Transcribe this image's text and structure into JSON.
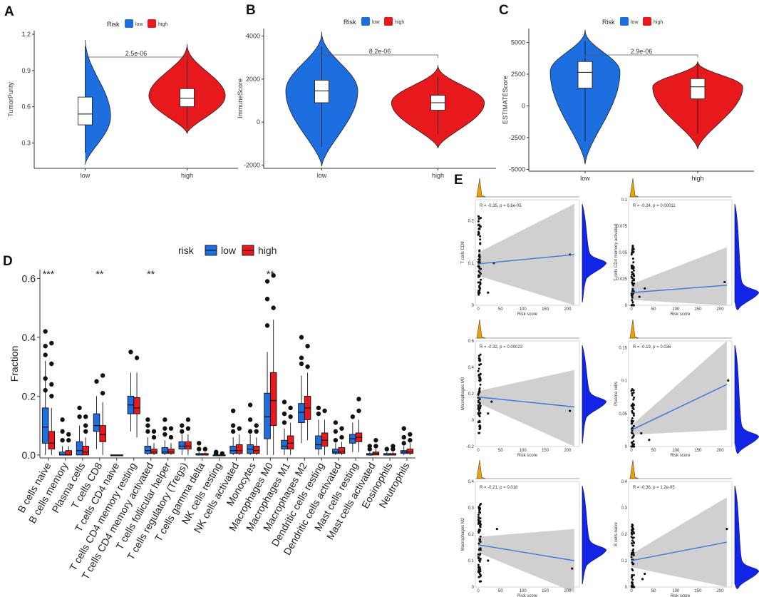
{
  "colors": {
    "low": "#1d6fe0",
    "high": "#e8191c",
    "dens": "#1224e6",
    "fit": "#3a78d6",
    "band": "#c8c8c8",
    "orange": "#f0a000"
  },
  "panel_labels": [
    "A",
    "B",
    "C",
    "D",
    "E"
  ],
  "chart_data": [
    {
      "id": "A",
      "type": "violin",
      "legend_title": "Risk",
      "legend": [
        "low",
        "high"
      ],
      "categories": [
        "low",
        "high"
      ],
      "ylabel": "TumorPurity",
      "yticks": [
        0.3,
        0.6,
        0.9,
        1.2
      ],
      "ylim": [
        0.09,
        1.23
      ],
      "pvalue": "2.5e-06",
      "groups": [
        {
          "name": "low",
          "color": "low",
          "min": 0.12,
          "max": 1.18,
          "q1": 0.45,
          "median": 0.54,
          "q3": 0.68,
          "wlo": 0.22,
          "whi": 1.1,
          "mode": 0.52,
          "width": 0.5
        },
        {
          "name": "high",
          "color": "high",
          "min": 0.38,
          "max": 1.12,
          "q1": 0.6,
          "median": 0.67,
          "q3": 0.75,
          "wlo": 0.42,
          "whi": 1.03,
          "mode": 0.69,
          "width": 0.75
        }
      ]
    },
    {
      "id": "B",
      "type": "violin",
      "legend_title": "Risk",
      "legend": [
        "low",
        "high"
      ],
      "categories": [
        "low",
        "high"
      ],
      "ylabel": "ImmuneScore",
      "yticks": [
        -2000,
        0,
        2000,
        4000
      ],
      "ylim": [
        -2150,
        4350
      ],
      "pvalue": "8.2e-06",
      "groups": [
        {
          "name": "low",
          "color": "low",
          "min": -2050,
          "max": 4200,
          "q1": 900,
          "median": 1450,
          "q3": 1950,
          "wlo": -1150,
          "whi": 3500,
          "mode": 1450,
          "width": 0.62
        },
        {
          "name": "high",
          "color": "high",
          "min": -1200,
          "max": 2650,
          "q1": 550,
          "median": 900,
          "q3": 1250,
          "wlo": -550,
          "whi": 2100,
          "mode": 900,
          "width": 0.8
        }
      ]
    },
    {
      "id": "C",
      "type": "violin",
      "legend_title": "Risk",
      "legend": [
        "low",
        "high"
      ],
      "categories": [
        "low",
        "high"
      ],
      "ylabel": "ESTIMATEScore",
      "yticks": [
        -5000,
        -2500,
        0,
        2500,
        5000
      ],
      "ylim": [
        -5150,
        6100
      ],
      "pvalue": "2.9e-06",
      "groups": [
        {
          "name": "low",
          "color": "low",
          "min": -4600,
          "max": 6000,
          "q1": 1400,
          "median": 2650,
          "q3": 3500,
          "wlo": -2800,
          "whi": 5100,
          "mode": 2700,
          "width": 0.62
        },
        {
          "name": "high",
          "color": "high",
          "min": -3400,
          "max": 3500,
          "q1": 550,
          "median": 1500,
          "q3": 2150,
          "wlo": -2200,
          "whi": 3300,
          "mode": 1500,
          "width": 0.8
        }
      ]
    },
    {
      "id": "D",
      "type": "boxplot",
      "legend_title": "risk",
      "legend": [
        "low",
        "high"
      ],
      "ylabel": "Fraction",
      "yticks": [
        0.0,
        0.2,
        0.4,
        0.6
      ],
      "ylim": [
        -0.01,
        0.63
      ],
      "categories": [
        "B cells naive",
        "B cells memory",
        "Plasma cells",
        "T cells CD8",
        "T cells CD4 naive",
        "T cells CD4 memory resting",
        "T cells CD4 memory activated",
        "T cells follicular helper",
        "T cells regulatory (Tregs)",
        "T cells gamma delta",
        "NK cells resting",
        "NK cells activated",
        "Monocytes",
        "Macrophages M0",
        "Macrophages M1",
        "Macrophages M2",
        "Dendritic cells resting",
        "Dendritic cells activated",
        "Mast cells resting",
        "Mast cells activated",
        "Eosinophils",
        "Neutrophils"
      ],
      "significance": [
        "***",
        "",
        "",
        "**",
        "",
        "",
        "**",
        "",
        "",
        "",
        "",
        "",
        "",
        "**",
        "",
        "",
        "",
        "",
        "",
        "",
        "",
        ""
      ],
      "low": [
        [
          0.04,
          0.095,
          0.16,
          0.0,
          0.32
        ],
        [
          0.0,
          0.0,
          0.01,
          0.0,
          0.03
        ],
        [
          0.0,
          0.015,
          0.045,
          0.0,
          0.1
        ],
        [
          0.08,
          0.1,
          0.14,
          0.02,
          0.2
        ],
        [
          0.0,
          0.0,
          0.0,
          0.0,
          0.0
        ],
        [
          0.14,
          0.17,
          0.2,
          0.08,
          0.28
        ],
        [
          0.005,
          0.015,
          0.03,
          0.0,
          0.06
        ],
        [
          0.005,
          0.01,
          0.025,
          0.0,
          0.05
        ],
        [
          0.02,
          0.03,
          0.045,
          0.0,
          0.07
        ],
        [
          0.0,
          0.0,
          0.005,
          0.0,
          0.01
        ],
        [
          0.0,
          0.0,
          0.0,
          0.0,
          0.0
        ],
        [
          0.005,
          0.015,
          0.03,
          0.0,
          0.06
        ],
        [
          0.005,
          0.02,
          0.035,
          0.0,
          0.07
        ],
        [
          0.055,
          0.13,
          0.21,
          0.0,
          0.35
        ],
        [
          0.02,
          0.03,
          0.05,
          0.0,
          0.09
        ],
        [
          0.11,
          0.145,
          0.175,
          0.04,
          0.27
        ],
        [
          0.02,
          0.035,
          0.065,
          0.0,
          0.12
        ],
        [
          0.005,
          0.01,
          0.02,
          0.0,
          0.04
        ],
        [
          0.04,
          0.055,
          0.07,
          0.01,
          0.11
        ],
        [
          0.0,
          0.0,
          0.005,
          0.0,
          0.01
        ],
        [
          0.0,
          0.0,
          0.005,
          0.0,
          0.01
        ],
        [
          0.005,
          0.01,
          0.015,
          0.0,
          0.03
        ]
      ],
      "high": [
        [
          0.02,
          0.04,
          0.08,
          0.0,
          0.16
        ],
        [
          0.0,
          0.0,
          0.015,
          0.0,
          0.03
        ],
        [
          0.0,
          0.01,
          0.03,
          0.0,
          0.06
        ],
        [
          0.045,
          0.07,
          0.1,
          0.0,
          0.18
        ],
        [
          0.0,
          0.0,
          0.0,
          0.0,
          0.0
        ],
        [
          0.14,
          0.16,
          0.195,
          0.06,
          0.28
        ],
        [
          0.005,
          0.01,
          0.02,
          0.0,
          0.04
        ],
        [
          0.005,
          0.01,
          0.02,
          0.0,
          0.04
        ],
        [
          0.02,
          0.03,
          0.045,
          0.0,
          0.07
        ],
        [
          0.0,
          0.0,
          0.005,
          0.0,
          0.01
        ],
        [
          0.0,
          0.0,
          0.0,
          0.0,
          0.0
        ],
        [
          0.005,
          0.015,
          0.035,
          0.0,
          0.07
        ],
        [
          0.005,
          0.015,
          0.03,
          0.0,
          0.06
        ],
        [
          0.1,
          0.185,
          0.28,
          0.0,
          0.46
        ],
        [
          0.02,
          0.04,
          0.065,
          0.0,
          0.11
        ],
        [
          0.12,
          0.16,
          0.2,
          0.05,
          0.28
        ],
        [
          0.03,
          0.05,
          0.075,
          0.0,
          0.12
        ],
        [
          0.005,
          0.01,
          0.025,
          0.0,
          0.045
        ],
        [
          0.045,
          0.06,
          0.075,
          0.01,
          0.12
        ],
        [
          0.0,
          0.005,
          0.01,
          0.0,
          0.02
        ],
        [
          0.0,
          0.0,
          0.005,
          0.0,
          0.01
        ],
        [
          0.005,
          0.01,
          0.02,
          0.0,
          0.04
        ]
      ],
      "low_outliers": [
        [
          0.22,
          0.26,
          0.34,
          0.37,
          0.42
        ],
        [
          0.05,
          0.08,
          0.12
        ],
        [
          0.13,
          0.16
        ],
        [
          0.25
        ],
        [],
        [
          0.35
        ],
        [
          0.08,
          0.1,
          0.12
        ],
        [
          0.07,
          0.09,
          0.12
        ],
        [
          0.08,
          0.1
        ],
        [
          0.02,
          0.04
        ],
        [
          0.005,
          0.01
        ],
        [
          0.08,
          0.1,
          0.15
        ],
        [
          0.08,
          0.12,
          0.17
        ],
        [
          0.44,
          0.53,
          0.59
        ],
        [
          0.11,
          0.14,
          0.18
        ],
        [
          0.31,
          0.33,
          0.4
        ],
        [
          0.14,
          0.16
        ],
        [
          0.05,
          0.08,
          0.11
        ],
        [
          0.13
        ],
        [
          0.02,
          0.03
        ],
        [
          0.02
        ],
        [
          0.04,
          0.06,
          0.09
        ]
      ],
      "high_outliers": [
        [
          0.2,
          0.24,
          0.31,
          0.38
        ],
        [
          0.05,
          0.07
        ],
        [
          0.08,
          0.1,
          0.13
        ],
        [
          0.21,
          0.27
        ],
        [],
        [
          0.33
        ],
        [
          0.06,
          0.08
        ],
        [
          0.06,
          0.09
        ],
        [
          0.09,
          0.12
        ],
        [
          0.02
        ],
        [
          0.005
        ],
        [
          0.09
        ],
        [
          0.08,
          0.1
        ],
        [
          0.5,
          0.61
        ],
        [
          0.13,
          0.16
        ],
        [
          0.3,
          0.37
        ],
        [
          0.15
        ],
        [
          0.06,
          0.09
        ],
        [
          0.15,
          0.19
        ],
        [
          0.03,
          0.05
        ],
        [
          0.02,
          0.03
        ],
        [
          0.05,
          0.07
        ]
      ]
    },
    {
      "id": "E",
      "type": "scatter-grid",
      "xlabel": "Risk score",
      "xticks": [
        0,
        50,
        100,
        150,
        200
      ],
      "panels": [
        {
          "ylabel": "T cells CD8",
          "stat": "R = -0.35, p = 6.6e-05",
          "ymin": 0,
          "ymax": 0.25,
          "yticks": [
            0.0,
            0.1,
            0.2
          ],
          "fit": [
            0.098,
            0.12
          ],
          "band": [
            [
              0.07,
              0.125
            ],
            [
              0.0,
              0.24
            ]
          ],
          "out": [
            [
              205,
              0.12
            ],
            [
              35,
              0.1
            ],
            [
              22,
              0.03
            ]
          ],
          "dens_peak": 0.1
        },
        {
          "ylabel": "T cells CD4 memory activated",
          "stat": "R = -0.24, p = 0.00011",
          "ymin": 0,
          "ymax": 0.1,
          "yticks": [
            0.0,
            0.025,
            0.05,
            0.075,
            0.1
          ],
          "fit": [
            0.012,
            0.019
          ],
          "band": [
            [
              0.005,
              0.02
            ],
            [
              0.0,
              0.055
            ]
          ],
          "out": [
            [
              210,
              0.022
            ],
            [
              30,
              0.016
            ],
            [
              18,
              0.008
            ]
          ],
          "dens_peak": 0.012
        },
        {
          "ylabel": "Macrophages M0",
          "stat": "R = -0.32, p = 0.00023",
          "ymin": -0.2,
          "ymax": 0.6,
          "yticks": [
            -0.2,
            0.0,
            0.2,
            0.4,
            0.6
          ],
          "fit": [
            0.175,
            0.1
          ],
          "band": [
            [
              0.13,
              0.22
            ],
            [
              -0.2,
              0.38
            ]
          ],
          "out": [
            [
              205,
              0.07
            ],
            [
              30,
              0.14
            ],
            [
              22,
              0.05
            ]
          ],
          "dens_peak": 0.14
        },
        {
          "ylabel": "Plasma cells",
          "stat": "R = -0.19, p = 0.036",
          "ymin": 0,
          "ymax": 0.16,
          "yticks": [
            0.0,
            0.05,
            0.1,
            0.15
          ],
          "fit": [
            0.025,
            0.094
          ],
          "band": [
            [
              0.018,
              0.032
            ],
            [
              0.025,
              0.16
            ]
          ],
          "out": [
            [
              218,
              0.1
            ],
            [
              40,
              0.01
            ],
            [
              22,
              0.02
            ]
          ],
          "dens_peak": 0.015
        },
        {
          "ylabel": "Macrophages M2",
          "stat": "R = -0.21, p = 0.018",
          "ymin": 0,
          "ymax": 0.4,
          "yticks": [
            0.0,
            0.1,
            0.2,
            0.3,
            0.4
          ],
          "fit": [
            0.16,
            0.1
          ],
          "band": [
            [
              0.13,
              0.19
            ],
            [
              -0.02,
              0.22
            ]
          ],
          "out": [
            [
              210,
              0.07
            ],
            [
              42,
              0.22
            ],
            [
              22,
              0.1
            ]
          ],
          "dens_peak": 0.14
        },
        {
          "ylabel": "B cells naive",
          "stat": "R = -0.36, p = 1.2e-05",
          "ymin": 0,
          "ymax": 0.4,
          "yticks": [
            0.0,
            0.1,
            0.2,
            0.3,
            0.4
          ],
          "fit": [
            0.1,
            0.17
          ],
          "band": [
            [
              0.075,
              0.125
            ],
            [
              0.0,
              0.34
            ]
          ],
          "out": [
            [
              215,
              0.22
            ],
            [
              30,
              0.05
            ],
            [
              25,
              0.03
            ]
          ],
          "dens_peak": 0.06
        }
      ]
    }
  ]
}
